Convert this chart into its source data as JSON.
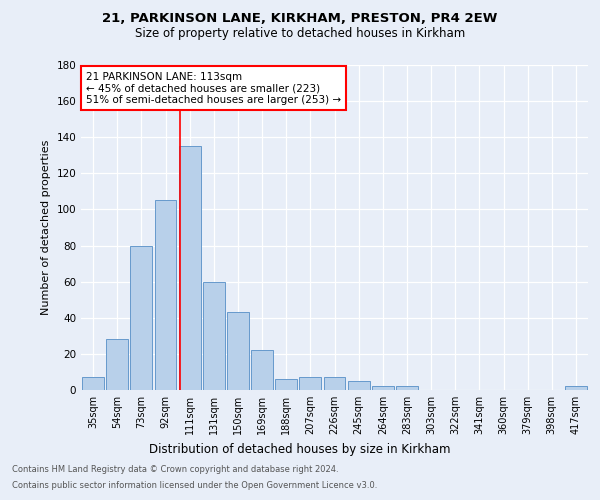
{
  "title1": "21, PARKINSON LANE, KIRKHAM, PRESTON, PR4 2EW",
  "title2": "Size of property relative to detached houses in Kirkham",
  "xlabel": "Distribution of detached houses by size in Kirkham",
  "ylabel": "Number of detached properties",
  "categories": [
    "35sqm",
    "54sqm",
    "73sqm",
    "92sqm",
    "111sqm",
    "131sqm",
    "150sqm",
    "169sqm",
    "188sqm",
    "207sqm",
    "226sqm",
    "245sqm",
    "264sqm",
    "283sqm",
    "303sqm",
    "322sqm",
    "341sqm",
    "360sqm",
    "379sqm",
    "398sqm",
    "417sqm"
  ],
  "values": [
    7,
    28,
    80,
    105,
    135,
    60,
    43,
    22,
    6,
    7,
    7,
    5,
    2,
    2,
    0,
    0,
    0,
    0,
    0,
    0,
    2
  ],
  "bar_color": "#b8d0ea",
  "bar_edge_color": "#6699cc",
  "red_line_x": 3.6,
  "annotation_line1": "21 PARKINSON LANE: 113sqm",
  "annotation_line2": "← 45% of detached houses are smaller (223)",
  "annotation_line3": "51% of semi-detached houses are larger (253) →",
  "ylim": [
    0,
    180
  ],
  "yticks": [
    0,
    20,
    40,
    60,
    80,
    100,
    120,
    140,
    160,
    180
  ],
  "footer1": "Contains HM Land Registry data © Crown copyright and database right 2024.",
  "footer2": "Contains public sector information licensed under the Open Government Licence v3.0.",
  "bg_color": "#e8eef8",
  "plot_bg_color": "#e8eef8"
}
